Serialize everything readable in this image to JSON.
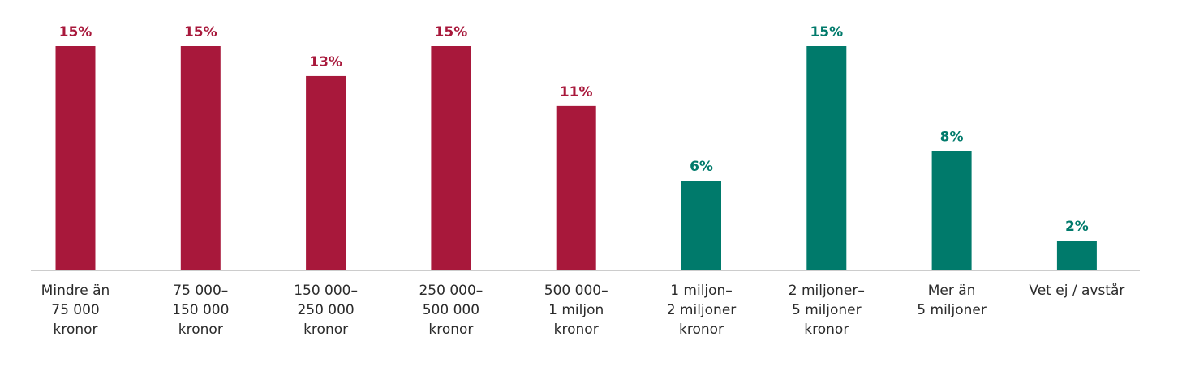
{
  "chart_data": {
    "type": "bar",
    "title": "",
    "xlabel": "",
    "ylabel": "",
    "ylim": [
      0,
      15
    ],
    "grid": false,
    "legend": "none",
    "categories": [
      [
        "Mindre än",
        "75 000",
        "kronor"
      ],
      [
        "75 000–",
        "150 000",
        "kronor"
      ],
      [
        "150 000–",
        "250 000",
        "kronor"
      ],
      [
        "250 000–",
        "500 000",
        "kronor"
      ],
      [
        "500 000–",
        "1 miljon",
        "kronor"
      ],
      [
        "1 miljon–",
        "2 miljoner",
        "kronor"
      ],
      [
        "2 miljoner–",
        "5 miljoner",
        "kronor"
      ],
      [
        "Mer än",
        "5 miljoner"
      ],
      [
        "Vet ej / avstår"
      ]
    ],
    "values": [
      15,
      15,
      13,
      15,
      11,
      6,
      15,
      8,
      2
    ],
    "value_labels": [
      "15%",
      "15%",
      "13%",
      "15%",
      "11%",
      "6%",
      "15%",
      "8%",
      "2%"
    ],
    "bar_colors": [
      "#a8183b",
      "#a8183b",
      "#a8183b",
      "#a8183b",
      "#a8183b",
      "#007a6b",
      "#007a6b",
      "#007a6b",
      "#007a6b"
    ],
    "axis_color": "#cccccc"
  }
}
